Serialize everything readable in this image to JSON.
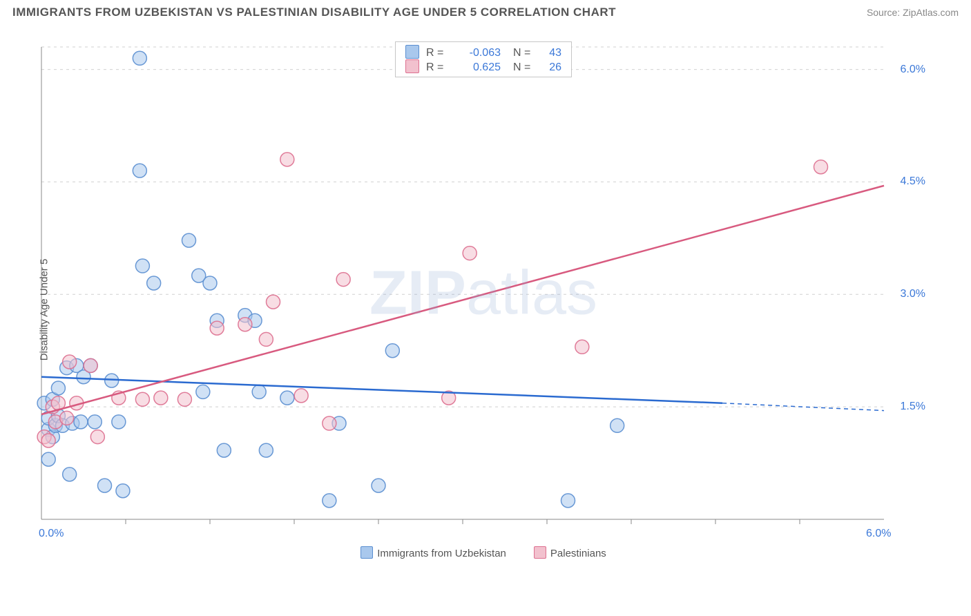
{
  "title": "IMMIGRANTS FROM UZBEKISTAN VS PALESTINIAN DISABILITY AGE UNDER 5 CORRELATION CHART",
  "source": "Source: ZipAtlas.com",
  "watermark": {
    "bold": "ZIP",
    "rest": "atlas"
  },
  "chart": {
    "type": "scatter",
    "ylabel": "Disability Age Under 5",
    "xlim": [
      0.0,
      6.0
    ],
    "ylim": [
      0.0,
      6.3
    ],
    "xtick_positions": [
      0.0,
      6.0
    ],
    "xtick_labels": [
      "0.0%",
      "6.0%"
    ],
    "ytick_positions": [
      1.5,
      3.0,
      4.5,
      6.0
    ],
    "ytick_labels": [
      "1.5%",
      "3.0%",
      "4.5%",
      "6.0%"
    ],
    "grid_color": "#d0d0d0",
    "axis_color": "#888888",
    "background_color": "#ffffff",
    "xminor_ticks": [
      0.6,
      1.2,
      1.8,
      2.4,
      3.0,
      3.6,
      4.2,
      4.8,
      5.4
    ],
    "marker_radius": 10,
    "marker_opacity": 0.55,
    "marker_stroke_opacity": 0.9,
    "series": [
      {
        "name": "Immigrants from Uzbekistan",
        "fill_color": "#a9c8ed",
        "stroke_color": "#5a8ed0",
        "line_color": "#2a6ad0",
        "R": "-0.063",
        "N": "43",
        "trend": {
          "x1": 0.0,
          "y1": 1.9,
          "x2": 4.85,
          "y2": 1.55,
          "dash_x2": 6.0,
          "dash_y2": 1.45
        },
        "points": [
          [
            0.02,
            1.55
          ],
          [
            0.05,
            0.8
          ],
          [
            0.05,
            1.2
          ],
          [
            0.05,
            1.35
          ],
          [
            0.08,
            1.1
          ],
          [
            0.08,
            1.6
          ],
          [
            0.1,
            1.25
          ],
          [
            0.12,
            1.38
          ],
          [
            0.12,
            1.75
          ],
          [
            0.15,
            1.25
          ],
          [
            0.18,
            2.02
          ],
          [
            0.2,
            0.6
          ],
          [
            0.22,
            1.28
          ],
          [
            0.25,
            2.05
          ],
          [
            0.28,
            1.3
          ],
          [
            0.3,
            1.9
          ],
          [
            0.35,
            2.05
          ],
          [
            0.38,
            1.3
          ],
          [
            0.45,
            0.45
          ],
          [
            0.5,
            1.85
          ],
          [
            0.55,
            1.3
          ],
          [
            0.58,
            0.38
          ],
          [
            0.7,
            4.65
          ],
          [
            0.7,
            6.15
          ],
          [
            0.72,
            3.38
          ],
          [
            0.8,
            3.15
          ],
          [
            1.05,
            3.72
          ],
          [
            1.12,
            3.25
          ],
          [
            1.15,
            1.7
          ],
          [
            1.2,
            3.15
          ],
          [
            1.25,
            2.65
          ],
          [
            1.3,
            0.92
          ],
          [
            1.45,
            2.72
          ],
          [
            1.52,
            2.65
          ],
          [
            1.55,
            1.7
          ],
          [
            1.6,
            0.92
          ],
          [
            1.75,
            1.62
          ],
          [
            2.05,
            0.25
          ],
          [
            2.12,
            1.28
          ],
          [
            2.4,
            0.45
          ],
          [
            2.5,
            2.25
          ],
          [
            3.75,
            0.25
          ],
          [
            4.1,
            1.25
          ]
        ]
      },
      {
        "name": "Palestinians",
        "fill_color": "#f2c1ce",
        "stroke_color": "#dd6f8f",
        "line_color": "#d85a7f",
        "R": "0.625",
        "N": "26",
        "trend": {
          "x1": 0.0,
          "y1": 1.4,
          "x2": 6.0,
          "y2": 4.45
        },
        "points": [
          [
            0.02,
            1.1
          ],
          [
            0.05,
            1.05
          ],
          [
            0.08,
            1.5
          ],
          [
            0.1,
            1.3
          ],
          [
            0.12,
            1.55
          ],
          [
            0.18,
            1.35
          ],
          [
            0.2,
            2.1
          ],
          [
            0.25,
            1.55
          ],
          [
            0.35,
            2.05
          ],
          [
            0.4,
            1.1
          ],
          [
            0.55,
            1.62
          ],
          [
            0.72,
            1.6
          ],
          [
            0.85,
            1.62
          ],
          [
            1.02,
            1.6
          ],
          [
            1.25,
            2.55
          ],
          [
            1.45,
            2.6
          ],
          [
            1.6,
            2.4
          ],
          [
            1.65,
            2.9
          ],
          [
            1.75,
            4.8
          ],
          [
            1.85,
            1.65
          ],
          [
            2.05,
            1.28
          ],
          [
            2.15,
            3.2
          ],
          [
            2.9,
            1.62
          ],
          [
            3.05,
            3.55
          ],
          [
            3.85,
            2.3
          ],
          [
            5.55,
            4.7
          ]
        ]
      }
    ],
    "xlegend": [
      {
        "label": "Immigrants from Uzbekistan",
        "fill": "#a9c8ed",
        "stroke": "#5a8ed0"
      },
      {
        "label": "Palestinians",
        "fill": "#f2c1ce",
        "stroke": "#dd6f8f"
      }
    ]
  }
}
